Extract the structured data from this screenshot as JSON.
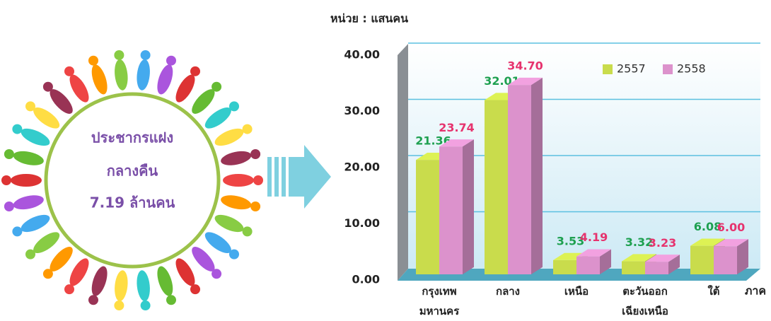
{
  "summary": {
    "lines": [
      "ประชากรแฝง",
      "กลางคืน",
      "7.19 ล้านคน"
    ]
  },
  "chart_data": {
    "type": "bar3d",
    "subtitle": "หน่วย : แสนคน",
    "x_label": "ภาค",
    "categories": [
      "กรุงเทพ\nมหานคร",
      "กลาง",
      "เหนือ",
      "ตะวันออก\nเฉียงเหนือ",
      "ใต้"
    ],
    "series": [
      {
        "name": "2557",
        "color": "#c9dc4c",
        "label_color": "#1ea050",
        "values": [
          21.36,
          32.01,
          3.53,
          3.32,
          6.08
        ],
        "value_labels": [
          "21.36",
          "32.01",
          "3.53",
          "3.32",
          "6.08"
        ]
      },
      {
        "name": "2558",
        "color": "#dc92cc",
        "label_color": "#e6336e",
        "values": [
          23.74,
          34.7,
          4.19,
          3.23,
          6.0
        ],
        "value_labels": [
          "23.74",
          "34.70",
          "4.19",
          "3.23",
          "6.00"
        ]
      }
    ],
    "ylim": [
      0,
      40
    ],
    "yticks": [
      {
        "value": 0,
        "label": "0.00"
      },
      {
        "value": 10,
        "label": "10.00"
      },
      {
        "value": 20,
        "label": "20.00"
      },
      {
        "value": 30,
        "label": "30.00"
      },
      {
        "value": 40,
        "label": "40.00"
      }
    ],
    "grid": true,
    "legend": "top-right"
  }
}
